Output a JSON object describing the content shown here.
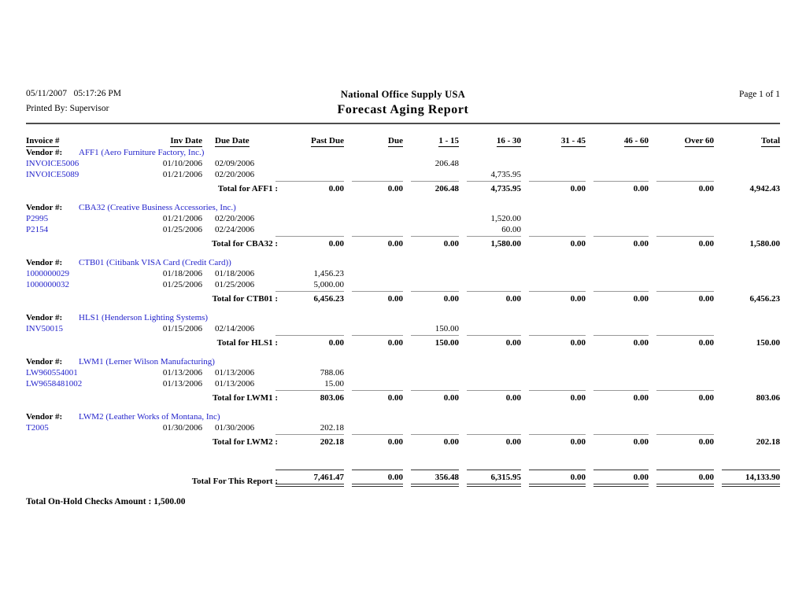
{
  "header": {
    "printed_datetime": "05/11/2007   05:17:26 PM",
    "printed_by": "Printed By: Supervisor",
    "company": "National Office Supply USA",
    "report_title": "Forecast Aging Report",
    "page": "Page 1 of  1"
  },
  "columns": [
    {
      "label": "Invoice #",
      "align": "left"
    },
    {
      "label": "Inv Date",
      "align": "right"
    },
    {
      "label": "Due Date",
      "align": "left"
    },
    {
      "label": "Past Due",
      "align": "right"
    },
    {
      "label": "Due",
      "align": "right"
    },
    {
      "label": "1 - 15",
      "align": "right"
    },
    {
      "label": "16 - 30",
      "align": "right"
    },
    {
      "label": "31 - 45",
      "align": "right"
    },
    {
      "label": "46 - 60",
      "align": "right"
    },
    {
      "label": "Over 60",
      "align": "right"
    },
    {
      "label": "Total",
      "align": "right"
    }
  ],
  "vendor_label": "Vendor #:",
  "vendors": [
    {
      "id": "AFF1",
      "name": "AFF1 (Aero Furniture Factory, Inc.)",
      "invoices": [
        {
          "invoice": "INVOICE5006",
          "inv_date": "01/10/2006",
          "due_date": "02/09/2006",
          "amounts": [
            "",
            "",
            "206.48",
            "",
            "",
            "",
            "",
            ""
          ]
        },
        {
          "invoice": "INVOICE5089",
          "inv_date": "01/21/2006",
          "due_date": "02/20/2006",
          "amounts": [
            "",
            "",
            "",
            "4,735.95",
            "",
            "",
            "",
            ""
          ]
        }
      ],
      "total_label": "Total for AFF1 :",
      "totals": [
        "0.00",
        "0.00",
        "206.48",
        "4,735.95",
        "0.00",
        "0.00",
        "0.00",
        "4,942.43"
      ]
    },
    {
      "id": "CBA32",
      "name": "CBA32 (Creative Business Accessories, Inc.)",
      "invoices": [
        {
          "invoice": "P2995",
          "inv_date": "01/21/2006",
          "due_date": "02/20/2006",
          "amounts": [
            "",
            "",
            "",
            "1,520.00",
            "",
            "",
            "",
            ""
          ]
        },
        {
          "invoice": "P2154",
          "inv_date": "01/25/2006",
          "due_date": "02/24/2006",
          "amounts": [
            "",
            "",
            "",
            "60.00",
            "",
            "",
            "",
            ""
          ]
        }
      ],
      "total_label": "Total for CBA32 :",
      "totals": [
        "0.00",
        "0.00",
        "0.00",
        "1,580.00",
        "0.00",
        "0.00",
        "0.00",
        "1,580.00"
      ]
    },
    {
      "id": "CTB01",
      "name": "CTB01 (Citibank VISA Card (Credit Card))",
      "invoices": [
        {
          "invoice": "1000000029",
          "inv_date": "01/18/2006",
          "due_date": "01/18/2006",
          "amounts": [
            "1,456.23",
            "",
            "",
            "",
            "",
            "",
            "",
            ""
          ]
        },
        {
          "invoice": "1000000032",
          "inv_date": "01/25/2006",
          "due_date": "01/25/2006",
          "amounts": [
            "5,000.00",
            "",
            "",
            "",
            "",
            "",
            "",
            ""
          ]
        }
      ],
      "total_label": "Total for CTB01 :",
      "totals": [
        "6,456.23",
        "0.00",
        "0.00",
        "0.00",
        "0.00",
        "0.00",
        "0.00",
        "6,456.23"
      ]
    },
    {
      "id": "HLS1",
      "name": "HLS1 (Henderson Lighting Systems)",
      "invoices": [
        {
          "invoice": "INV50015",
          "inv_date": "01/15/2006",
          "due_date": "02/14/2006",
          "amounts": [
            "",
            "",
            "150.00",
            "",
            "",
            "",
            "",
            ""
          ]
        }
      ],
      "total_label": "Total for HLS1 :",
      "totals": [
        "0.00",
        "0.00",
        "150.00",
        "0.00",
        "0.00",
        "0.00",
        "0.00",
        "150.00"
      ]
    },
    {
      "id": "LWM1",
      "name": "LWM1 (Lerner Wilson Manufacturing)",
      "invoices": [
        {
          "invoice": "LW960554001",
          "inv_date": "01/13/2006",
          "due_date": "01/13/2006",
          "amounts": [
            "788.06",
            "",
            "",
            "",
            "",
            "",
            "",
            ""
          ]
        },
        {
          "invoice": "LW9658481002",
          "inv_date": "01/13/2006",
          "due_date": "01/13/2006",
          "amounts": [
            "15.00",
            "",
            "",
            "",
            "",
            "",
            "",
            ""
          ]
        }
      ],
      "total_label": "Total for LWM1 :",
      "totals": [
        "803.06",
        "0.00",
        "0.00",
        "0.00",
        "0.00",
        "0.00",
        "0.00",
        "803.06"
      ]
    },
    {
      "id": "LWM2",
      "name": "LWM2 (Leather Works of Montana, Inc)",
      "invoices": [
        {
          "invoice": "T2005",
          "inv_date": "01/30/2006",
          "due_date": "01/30/2006",
          "amounts": [
            "202.18",
            "",
            "",
            "",
            "",
            "",
            "",
            ""
          ]
        }
      ],
      "total_label": "Total for LWM2 :",
      "totals": [
        "202.18",
        "0.00",
        "0.00",
        "0.00",
        "0.00",
        "0.00",
        "0.00",
        "202.18"
      ]
    }
  ],
  "grand_total": {
    "label": "Total For This Report :",
    "values": [
      "7,461.47",
      "0.00",
      "356.48",
      "6,315.95",
      "0.00",
      "0.00",
      "0.00",
      "14,133.90"
    ]
  },
  "footer": {
    "on_hold_text": "Total On-Hold Checks Amount : 1,500.00"
  },
  "colors": {
    "link_blue": "#2323CB",
    "rule_gray": "#999999",
    "grand_rule": "#333333"
  }
}
